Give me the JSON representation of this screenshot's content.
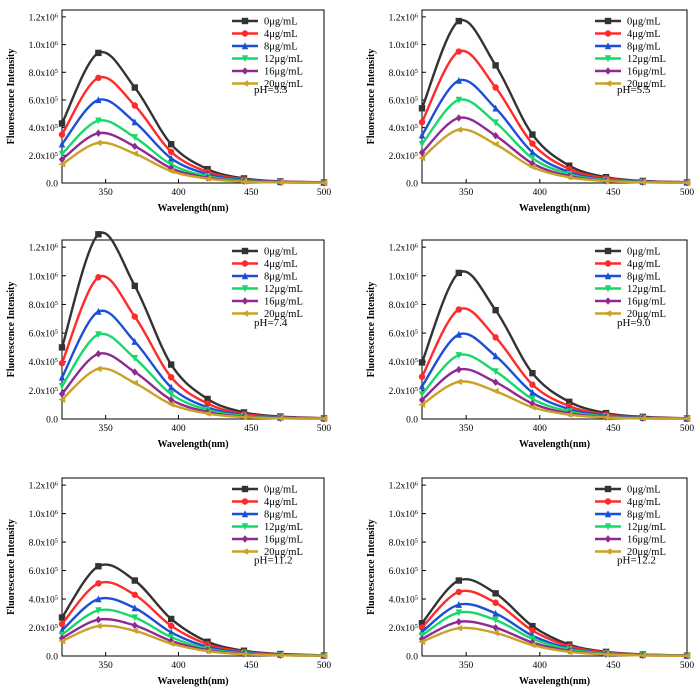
{
  "chart_data": [
    {
      "type": "line",
      "title": "",
      "annotation": "pH=3.3",
      "xlabel": "Wavelength(nm)",
      "ylabel": "Fluorescence Intensity",
      "xlim": [
        320,
        500
      ],
      "ylim": [
        0,
        1250000
      ],
      "x": [
        320,
        345,
        370,
        395,
        420,
        445,
        470,
        500
      ],
      "series": [
        {
          "name": "0μg/mL",
          "color": "#333333",
          "values": [
            430000,
            940000,
            690000,
            280000,
            100000,
            33000,
            12000,
            5000
          ]
        },
        {
          "name": "4μg/mL",
          "color": "#ff2b2b",
          "values": [
            350000,
            760000,
            560000,
            225000,
            80000,
            27000,
            10000,
            4000
          ]
        },
        {
          "name": "8μg/mL",
          "color": "#1b4fd6",
          "values": [
            280000,
            600000,
            440000,
            178000,
            64000,
            21000,
            8000,
            3000
          ]
        },
        {
          "name": "12μg/mL",
          "color": "#17d86a",
          "values": [
            210000,
            450000,
            330000,
            134000,
            48000,
            16000,
            6000,
            2500
          ]
        },
        {
          "name": "16μg/mL",
          "color": "#8e2a92",
          "values": [
            170000,
            360000,
            265000,
            107000,
            38000,
            13000,
            5000,
            2000
          ]
        },
        {
          "name": "20μg/mL",
          "color": "#c9a227",
          "values": [
            135000,
            290000,
            212000,
            86000,
            31000,
            10000,
            4000,
            1500
          ]
        }
      ],
      "y_tick_labels": [
        "0.0",
        "2.0x10^5",
        "4.0x10^5",
        "6.0x10^5",
        "8.0x10^5",
        "1.0x10^6",
        "1.2x10^6"
      ],
      "x_tick_labels": [
        "350",
        "400",
        "450",
        "500"
      ],
      "legend": "top-right"
    },
    {
      "type": "line",
      "title": "",
      "annotation": "pH=5.5",
      "xlabel": "Wavelength(nm)",
      "ylabel": "Fluorescence Intensity",
      "xlim": [
        320,
        500
      ],
      "ylim": [
        0,
        1250000
      ],
      "x": [
        320,
        345,
        370,
        395,
        420,
        445,
        470,
        500
      ],
      "series": [
        {
          "name": "0μg/mL",
          "color": "#333333",
          "values": [
            540000,
            1170000,
            850000,
            350000,
            125000,
            42000,
            15000,
            6000
          ]
        },
        {
          "name": "4μg/mL",
          "color": "#ff2b2b",
          "values": [
            440000,
            950000,
            690000,
            285000,
            101000,
            34000,
            12000,
            5000
          ]
        },
        {
          "name": "8μg/mL",
          "color": "#1b4fd6",
          "values": [
            345000,
            740000,
            540000,
            222000,
            79000,
            26000,
            10000,
            4000
          ]
        },
        {
          "name": "12μg/mL",
          "color": "#17d86a",
          "values": [
            280000,
            600000,
            437000,
            180000,
            64000,
            21000,
            8000,
            3000
          ]
        },
        {
          "name": "16μg/mL",
          "color": "#8e2a92",
          "values": [
            220000,
            470000,
            342000,
            141000,
            50000,
            17000,
            6000,
            2500
          ]
        },
        {
          "name": "20μg/mL",
          "color": "#c9a227",
          "values": [
            180000,
            385000,
            280000,
            115000,
            41000,
            14000,
            5000,
            2000
          ]
        }
      ],
      "y_tick_labels": [
        "0.0",
        "2.0x10^5",
        "4.0x10^5",
        "6.0x10^5",
        "8.0x10^5",
        "1.0x10^6",
        "1.2x10^6"
      ],
      "x_tick_labels": [
        "350",
        "400",
        "450",
        "500"
      ],
      "legend": "top-right"
    },
    {
      "type": "line",
      "title": "",
      "annotation": "pH=7.4",
      "xlabel": "Wavelength(nm)",
      "ylabel": "Fluorescence Intensity",
      "xlim": [
        320,
        500
      ],
      "ylim": [
        0,
        1250000
      ],
      "x": [
        320,
        345,
        370,
        395,
        420,
        445,
        470,
        500
      ],
      "series": [
        {
          "name": "0μg/mL",
          "color": "#333333",
          "values": [
            500000,
            1290000,
            930000,
            380000,
            140000,
            46000,
            17000,
            6000
          ]
        },
        {
          "name": "4μg/mL",
          "color": "#ff2b2b",
          "values": [
            390000,
            990000,
            715000,
            292000,
            108000,
            35000,
            13000,
            5000
          ]
        },
        {
          "name": "8μg/mL",
          "color": "#1b4fd6",
          "values": [
            290000,
            750000,
            540000,
            221000,
            81000,
            27000,
            10000,
            4000
          ]
        },
        {
          "name": "12μg/mL",
          "color": "#17d86a",
          "values": [
            230000,
            590000,
            425000,
            174000,
            64000,
            21000,
            8000,
            3000
          ]
        },
        {
          "name": "16μg/mL",
          "color": "#8e2a92",
          "values": [
            175000,
            455000,
            328000,
            134000,
            49000,
            16000,
            6000,
            2500
          ]
        },
        {
          "name": "20μg/mL",
          "color": "#c9a227",
          "values": [
            135000,
            350000,
            252000,
            103000,
            38000,
            12500,
            5000,
            2000
          ]
        }
      ],
      "y_tick_labels": [
        "0.0",
        "2.0x10^5",
        "4.0x10^5",
        "6.0x10^5",
        "8.0x10^5",
        "1.0x10^6",
        "1.2x10^6"
      ],
      "x_tick_labels": [
        "350",
        "400",
        "450",
        "500"
      ],
      "legend": "top-right"
    },
    {
      "type": "line",
      "title": "",
      "annotation": "pH=9.0",
      "xlabel": "Wavelength(nm)",
      "ylabel": "Fluorescence Intensity",
      "xlim": [
        320,
        500
      ],
      "ylim": [
        0,
        1250000
      ],
      "x": [
        320,
        345,
        370,
        395,
        420,
        445,
        470,
        500
      ],
      "series": [
        {
          "name": "0μg/mL",
          "color": "#333333",
          "values": [
            395000,
            1020000,
            760000,
            320000,
            120000,
            41000,
            15000,
            5000
          ]
        },
        {
          "name": "4μg/mL",
          "color": "#ff2b2b",
          "values": [
            295000,
            765000,
            570000,
            240000,
            90000,
            31000,
            11000,
            4000
          ]
        },
        {
          "name": "8μg/mL",
          "color": "#1b4fd6",
          "values": [
            228000,
            590000,
            440000,
            185000,
            69000,
            24000,
            9000,
            3500
          ]
        },
        {
          "name": "12μg/mL",
          "color": "#17d86a",
          "values": [
            172000,
            445000,
            332000,
            140000,
            52000,
            18000,
            7000,
            3000
          ]
        },
        {
          "name": "16μg/mL",
          "color": "#8e2a92",
          "values": [
            133000,
            345000,
            257000,
            108000,
            40000,
            14000,
            5000,
            2500
          ]
        },
        {
          "name": "20μg/mL",
          "color": "#c9a227",
          "values": [
            100000,
            260000,
            194000,
            82000,
            30000,
            10500,
            4000,
            2000
          ]
        }
      ],
      "y_tick_labels": [
        "0.0",
        "2.0x10^5",
        "4.0x10^5",
        "6.0x10^5",
        "8.0x10^5",
        "1.0x10^6",
        "1.2x10^6"
      ],
      "x_tick_labels": [
        "350",
        "400",
        "450",
        "500"
      ],
      "legend": "top-right"
    },
    {
      "type": "line",
      "title": "",
      "annotation": "pH=11.2",
      "xlabel": "Wavelength(nm)",
      "ylabel": "Fluorescence Intensity",
      "xlim": [
        320,
        500
      ],
      "ylim": [
        0,
        1250000
      ],
      "x": [
        320,
        345,
        370,
        395,
        420,
        445,
        470,
        500
      ],
      "series": [
        {
          "name": "0μg/mL",
          "color": "#333333",
          "values": [
            270000,
            630000,
            530000,
            260000,
            100000,
            37000,
            14000,
            5000
          ]
        },
        {
          "name": "4μg/mL",
          "color": "#ff2b2b",
          "values": [
            225000,
            510000,
            430000,
            212000,
            82000,
            30000,
            11000,
            4000
          ]
        },
        {
          "name": "8μg/mL",
          "color": "#1b4fd6",
          "values": [
            180000,
            400000,
            337000,
            166000,
            64000,
            24000,
            9000,
            3500
          ]
        },
        {
          "name": "12μg/mL",
          "color": "#17d86a",
          "values": [
            150000,
            320000,
            270000,
            133000,
            51000,
            19000,
            7000,
            3000
          ]
        },
        {
          "name": "16μg/mL",
          "color": "#8e2a92",
          "values": [
            125000,
            255000,
            215000,
            106000,
            41000,
            15000,
            6000,
            2500
          ]
        },
        {
          "name": "20μg/mL",
          "color": "#c9a227",
          "values": [
            105000,
            210000,
            177000,
            87000,
            34000,
            12000,
            5000,
            2000
          ]
        }
      ],
      "y_tick_labels": [
        "0.0",
        "2.0x10^5",
        "4.0x10^5",
        "6.0x10^5",
        "8.0x10^5",
        "1.0x10^6",
        "1.2x10^6"
      ],
      "x_tick_labels": [
        "350",
        "400",
        "450",
        "500"
      ],
      "legend": "top-right"
    },
    {
      "type": "line",
      "title": "",
      "annotation": "pH=12.2",
      "xlabel": "Wavelength(nm)",
      "ylabel": "Fluorescence Intensity",
      "xlim": [
        320,
        500
      ],
      "ylim": [
        0,
        1250000
      ],
      "x": [
        320,
        345,
        370,
        395,
        420,
        445,
        470,
        500
      ],
      "series": [
        {
          "name": "0μg/mL",
          "color": "#333333",
          "values": [
            230000,
            530000,
            440000,
            210000,
            80000,
            29000,
            11000,
            4000
          ]
        },
        {
          "name": "4μg/mL",
          "color": "#ff2b2b",
          "values": [
            200000,
            450000,
            374000,
            179000,
            68000,
            25000,
            9000,
            3500
          ]
        },
        {
          "name": "8μg/mL",
          "color": "#1b4fd6",
          "values": [
            170000,
            360000,
            299000,
            143000,
            54000,
            20000,
            7500,
            3000
          ]
        },
        {
          "name": "12μg/mL",
          "color": "#17d86a",
          "values": [
            145000,
            305000,
            253000,
            121000,
            46000,
            17000,
            6500,
            2500
          ]
        },
        {
          "name": "16μg/mL",
          "color": "#8e2a92",
          "values": [
            120000,
            240000,
            199000,
            95000,
            36000,
            13000,
            5000,
            2000
          ]
        },
        {
          "name": "20μg/mL",
          "color": "#c9a227",
          "values": [
            100000,
            195000,
            162000,
            77000,
            29000,
            10500,
            4000,
            1500
          ]
        }
      ],
      "y_tick_labels": [
        "0.0",
        "2.0x10^5",
        "4.0x10^5",
        "6.0x10^5",
        "8.0x10^5",
        "1.0x10^6",
        "1.2x10^6"
      ],
      "x_tick_labels": [
        "350",
        "400",
        "450",
        "500"
      ],
      "legend": "top-right"
    }
  ]
}
